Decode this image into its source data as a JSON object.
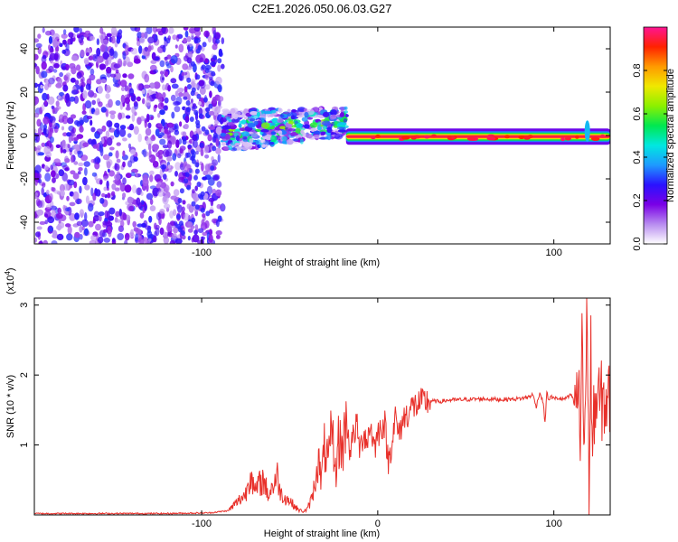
{
  "title": "C2E1.2026.050.06.03.G27",
  "chart_data": [
    {
      "type": "heatmap",
      "name": "spectrogram",
      "xlabel": "Height of straight line (km)",
      "ylabel": "Frequency (Hz)",
      "xlim": [
        -195,
        132
      ],
      "ylim": [
        -50,
        50
      ],
      "xticks": [
        -100,
        0,
        100
      ],
      "xtick_labels": [
        "-100",
        "",
        "100"
      ],
      "yticks": [
        -40,
        -20,
        0,
        20,
        40
      ],
      "ytick_labels": [
        "-40",
        "-20",
        "0",
        "20",
        "40"
      ],
      "colorbar": {
        "label": "Normalized spectral amplitude",
        "range": [
          0,
          1
        ],
        "ticks": [
          0.0,
          0.2,
          0.4,
          0.6,
          0.8
        ],
        "tick_labels": [
          "0.0",
          "0.2",
          "0.4",
          "0.6",
          "0.8"
        ],
        "colormap": [
          "#ffffff",
          "#b88cf0",
          "#7a00e6",
          "#2a12ff",
          "#1e9aff",
          "#00e8e0",
          "#00e850",
          "#8cf000",
          "#f0e800",
          "#ff9a00",
          "#ff2200",
          "#ff1493"
        ]
      },
      "regions": [
        {
          "desc": "noise",
          "x": [
            -195,
            -88
          ],
          "freq": [
            -50,
            50
          ],
          "amplitude": 0.2
        },
        {
          "desc": "emerging signal",
          "x": [
            -88,
            -18
          ],
          "freq": [
            -10,
            15
          ],
          "amplitude": 0.45
        },
        {
          "desc": "stable carrier",
          "x": [
            -18,
            132
          ],
          "freq": [
            -3,
            2
          ],
          "amplitude": 0.95
        }
      ]
    },
    {
      "type": "line",
      "name": "snr",
      "xlabel": "Height of straight line (km)",
      "ylabel": "SNR (10 * v/v)",
      "scale_note": "(x10",
      "scale_exp": "4",
      "xlim": [
        -195,
        132
      ],
      "ylim": [
        0,
        3.1
      ],
      "xticks": [
        -100,
        0,
        100
      ],
      "xtick_labels": [
        "-100",
        "0",
        "100"
      ],
      "yticks": [
        1,
        2,
        3
      ],
      "ytick_labels": [
        "1",
        "2",
        "3"
      ],
      "color": "#e8302a",
      "x": [
        -195,
        -160,
        -120,
        -95,
        -85,
        -80,
        -75,
        -72,
        -70,
        -68,
        -65,
        -62,
        -60,
        -57,
        -55,
        -52,
        -50,
        -47,
        -45,
        -42,
        -40,
        -38,
        -36,
        -34,
        -32,
        -30,
        -28,
        -26,
        -24,
        -22,
        -20,
        -18,
        -16,
        -14,
        -12,
        -10,
        -8,
        -6,
        -4,
        -2,
        0,
        2,
        4,
        6,
        8,
        10,
        12,
        14,
        16,
        18,
        20,
        25,
        30,
        35,
        40,
        50,
        60,
        70,
        80,
        85,
        88,
        90,
        92,
        94,
        95,
        96,
        97,
        98,
        100,
        102,
        105,
        108,
        110,
        112,
        114,
        115,
        116,
        117,
        118,
        119,
        120,
        121,
        122,
        123,
        125,
        128,
        132
      ],
      "values": [
        0.02,
        0.02,
        0.02,
        0.03,
        0.06,
        0.18,
        0.3,
        0.65,
        0.3,
        0.42,
        0.5,
        0.28,
        0.4,
        0.55,
        0.3,
        0.24,
        0.2,
        0.12,
        0.07,
        0.05,
        0.08,
        0.2,
        0.4,
        0.8,
        0.5,
        1.0,
        0.7,
        1.2,
        0.6,
        1.1,
        0.9,
        1.45,
        0.95,
        1.1,
        1.3,
        0.9,
        1.2,
        1.05,
        1.3,
        0.95,
        1.15,
        1.28,
        1.3,
        0.75,
        1.05,
        1.4,
        1.12,
        1.35,
        1.42,
        1.5,
        1.55,
        1.6,
        1.63,
        1.62,
        1.64,
        1.65,
        1.66,
        1.65,
        1.66,
        1.68,
        1.72,
        1.55,
        1.75,
        1.6,
        1.3,
        1.78,
        1.62,
        1.7,
        1.66,
        1.67,
        1.65,
        1.68,
        1.72,
        1.55,
        1.85,
        0.9,
        2.9,
        1.0,
        1.6,
        3.1,
        0.15,
        2.4,
        0.6,
        1.6,
        1.62,
        1.62,
        1.62
      ]
    }
  ]
}
